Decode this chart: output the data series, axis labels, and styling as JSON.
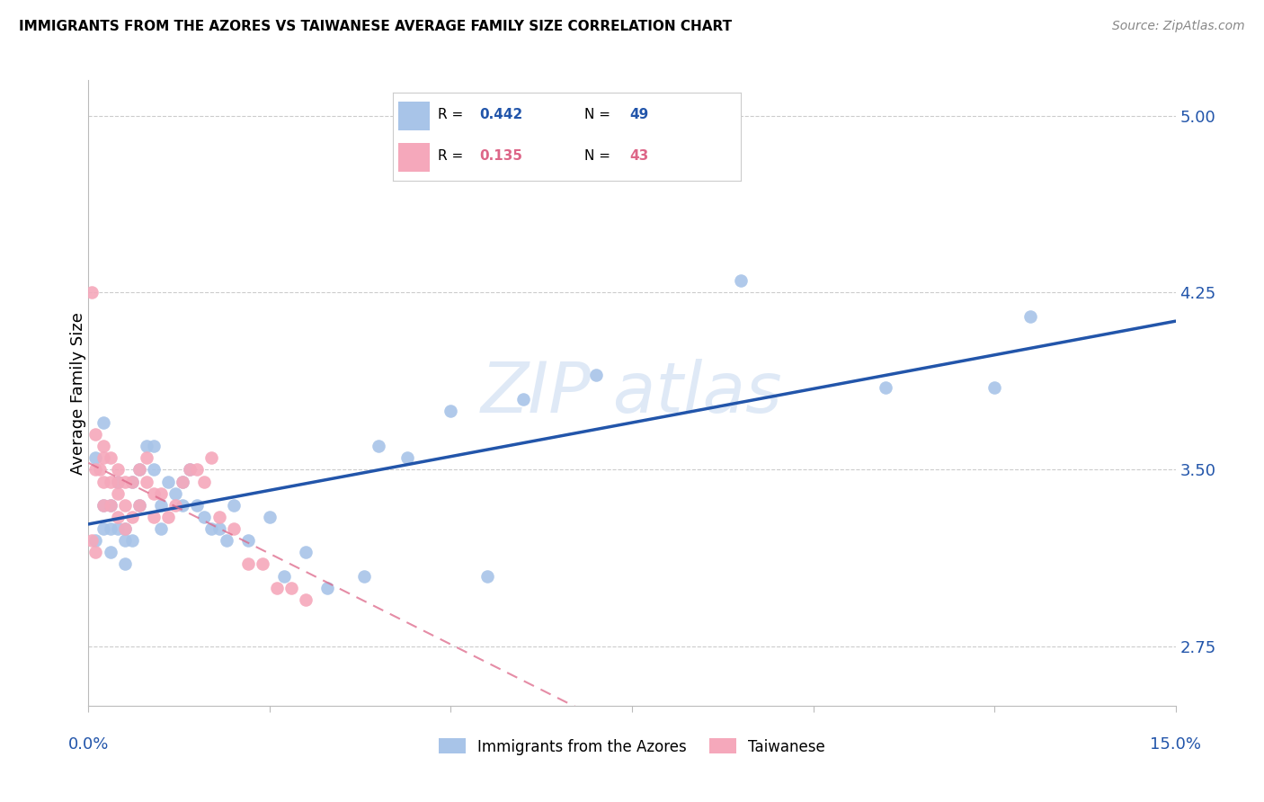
{
  "title": "IMMIGRANTS FROM THE AZORES VS TAIWANESE AVERAGE FAMILY SIZE CORRELATION CHART",
  "source": "Source: ZipAtlas.com",
  "ylabel": "Average Family Size",
  "y_ticks": [
    2.75,
    3.5,
    4.25,
    5.0
  ],
  "x_min": 0.0,
  "x_max": 0.15,
  "y_min": 2.5,
  "y_max": 5.15,
  "azores_R": "0.442",
  "azores_N": "49",
  "taiwanese_R": "0.135",
  "taiwanese_N": "43",
  "azores_color": "#a8c4e8",
  "taiwanese_color": "#f5a8bb",
  "azores_line_color": "#2255aa",
  "taiwanese_line_color": "#dd6688",
  "azores_x": [
    0.001,
    0.001,
    0.002,
    0.002,
    0.002,
    0.003,
    0.003,
    0.003,
    0.004,
    0.004,
    0.005,
    0.005,
    0.005,
    0.006,
    0.006,
    0.007,
    0.007,
    0.008,
    0.009,
    0.009,
    0.01,
    0.01,
    0.011,
    0.012,
    0.013,
    0.013,
    0.014,
    0.015,
    0.016,
    0.017,
    0.018,
    0.019,
    0.02,
    0.022,
    0.025,
    0.027,
    0.03,
    0.033,
    0.038,
    0.04,
    0.044,
    0.05,
    0.055,
    0.06,
    0.07,
    0.09,
    0.11,
    0.125,
    0.13
  ],
  "azores_y": [
    3.2,
    3.55,
    3.7,
    3.35,
    3.25,
    3.35,
    3.25,
    3.15,
    3.45,
    3.25,
    3.25,
    3.2,
    3.1,
    3.45,
    3.2,
    3.5,
    3.35,
    3.6,
    3.6,
    3.5,
    3.35,
    3.25,
    3.45,
    3.4,
    3.45,
    3.35,
    3.5,
    3.35,
    3.3,
    3.25,
    3.25,
    3.2,
    3.35,
    3.2,
    3.3,
    3.05,
    3.15,
    3.0,
    3.05,
    3.6,
    3.55,
    3.75,
    3.05,
    3.8,
    3.9,
    4.3,
    3.85,
    3.85,
    4.15
  ],
  "taiwanese_x": [
    0.0005,
    0.001,
    0.001,
    0.0015,
    0.002,
    0.002,
    0.002,
    0.002,
    0.003,
    0.003,
    0.003,
    0.004,
    0.004,
    0.004,
    0.004,
    0.005,
    0.005,
    0.005,
    0.006,
    0.006,
    0.007,
    0.007,
    0.008,
    0.008,
    0.009,
    0.009,
    0.01,
    0.011,
    0.012,
    0.013,
    0.014,
    0.015,
    0.016,
    0.017,
    0.018,
    0.02,
    0.022,
    0.024,
    0.026,
    0.028,
    0.03,
    0.0005,
    0.001
  ],
  "taiwanese_y": [
    4.25,
    3.65,
    3.5,
    3.5,
    3.6,
    3.55,
    3.45,
    3.35,
    3.55,
    3.45,
    3.35,
    3.5,
    3.45,
    3.4,
    3.3,
    3.45,
    3.35,
    3.25,
    3.45,
    3.3,
    3.5,
    3.35,
    3.55,
    3.45,
    3.4,
    3.3,
    3.4,
    3.3,
    3.35,
    3.45,
    3.5,
    3.5,
    3.45,
    3.55,
    3.3,
    3.25,
    3.1,
    3.1,
    3.0,
    3.0,
    2.95,
    3.2,
    3.15
  ]
}
